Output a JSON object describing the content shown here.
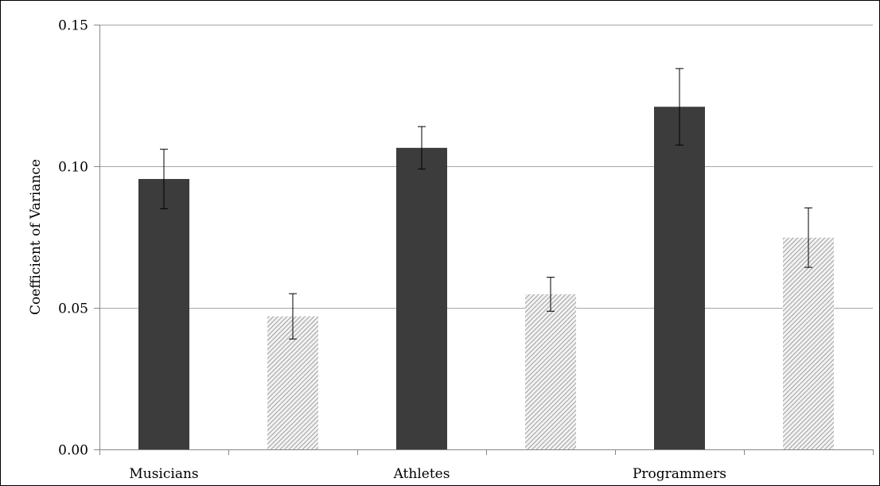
{
  "chart_data": {
    "type": "bar",
    "title": "",
    "xlabel": "",
    "ylabel": "Coefficient of Variance",
    "ylim": [
      0.0,
      0.15
    ],
    "yticks": [
      "0.00",
      "0.05",
      "0.10",
      "0.15"
    ],
    "ytick_values": [
      0.0,
      0.05,
      0.1,
      0.15
    ],
    "grid": "horizontal",
    "legend": "none",
    "categories": [
      "Musicians",
      "",
      "Athletes",
      "",
      "Programmers",
      ""
    ],
    "bars": [
      {
        "value": 0.0955,
        "error": 0.0105,
        "style": "solid"
      },
      {
        "value": 0.047,
        "error": 0.008,
        "style": "hatched"
      },
      {
        "value": 0.1065,
        "error": 0.0075,
        "style": "solid"
      },
      {
        "value": 0.0548,
        "error": 0.006,
        "style": "hatched"
      },
      {
        "value": 0.121,
        "error": 0.0135,
        "style": "solid"
      },
      {
        "value": 0.0748,
        "error": 0.0105,
        "style": "hatched"
      }
    ],
    "colors": {
      "solid": "#3c3c3c",
      "hatch_line": "#8c8c8c",
      "hatch_bg": "#f2f2f2",
      "grid": "#a6a6a6",
      "axis": "#888888",
      "error_bar": "#000000"
    }
  }
}
